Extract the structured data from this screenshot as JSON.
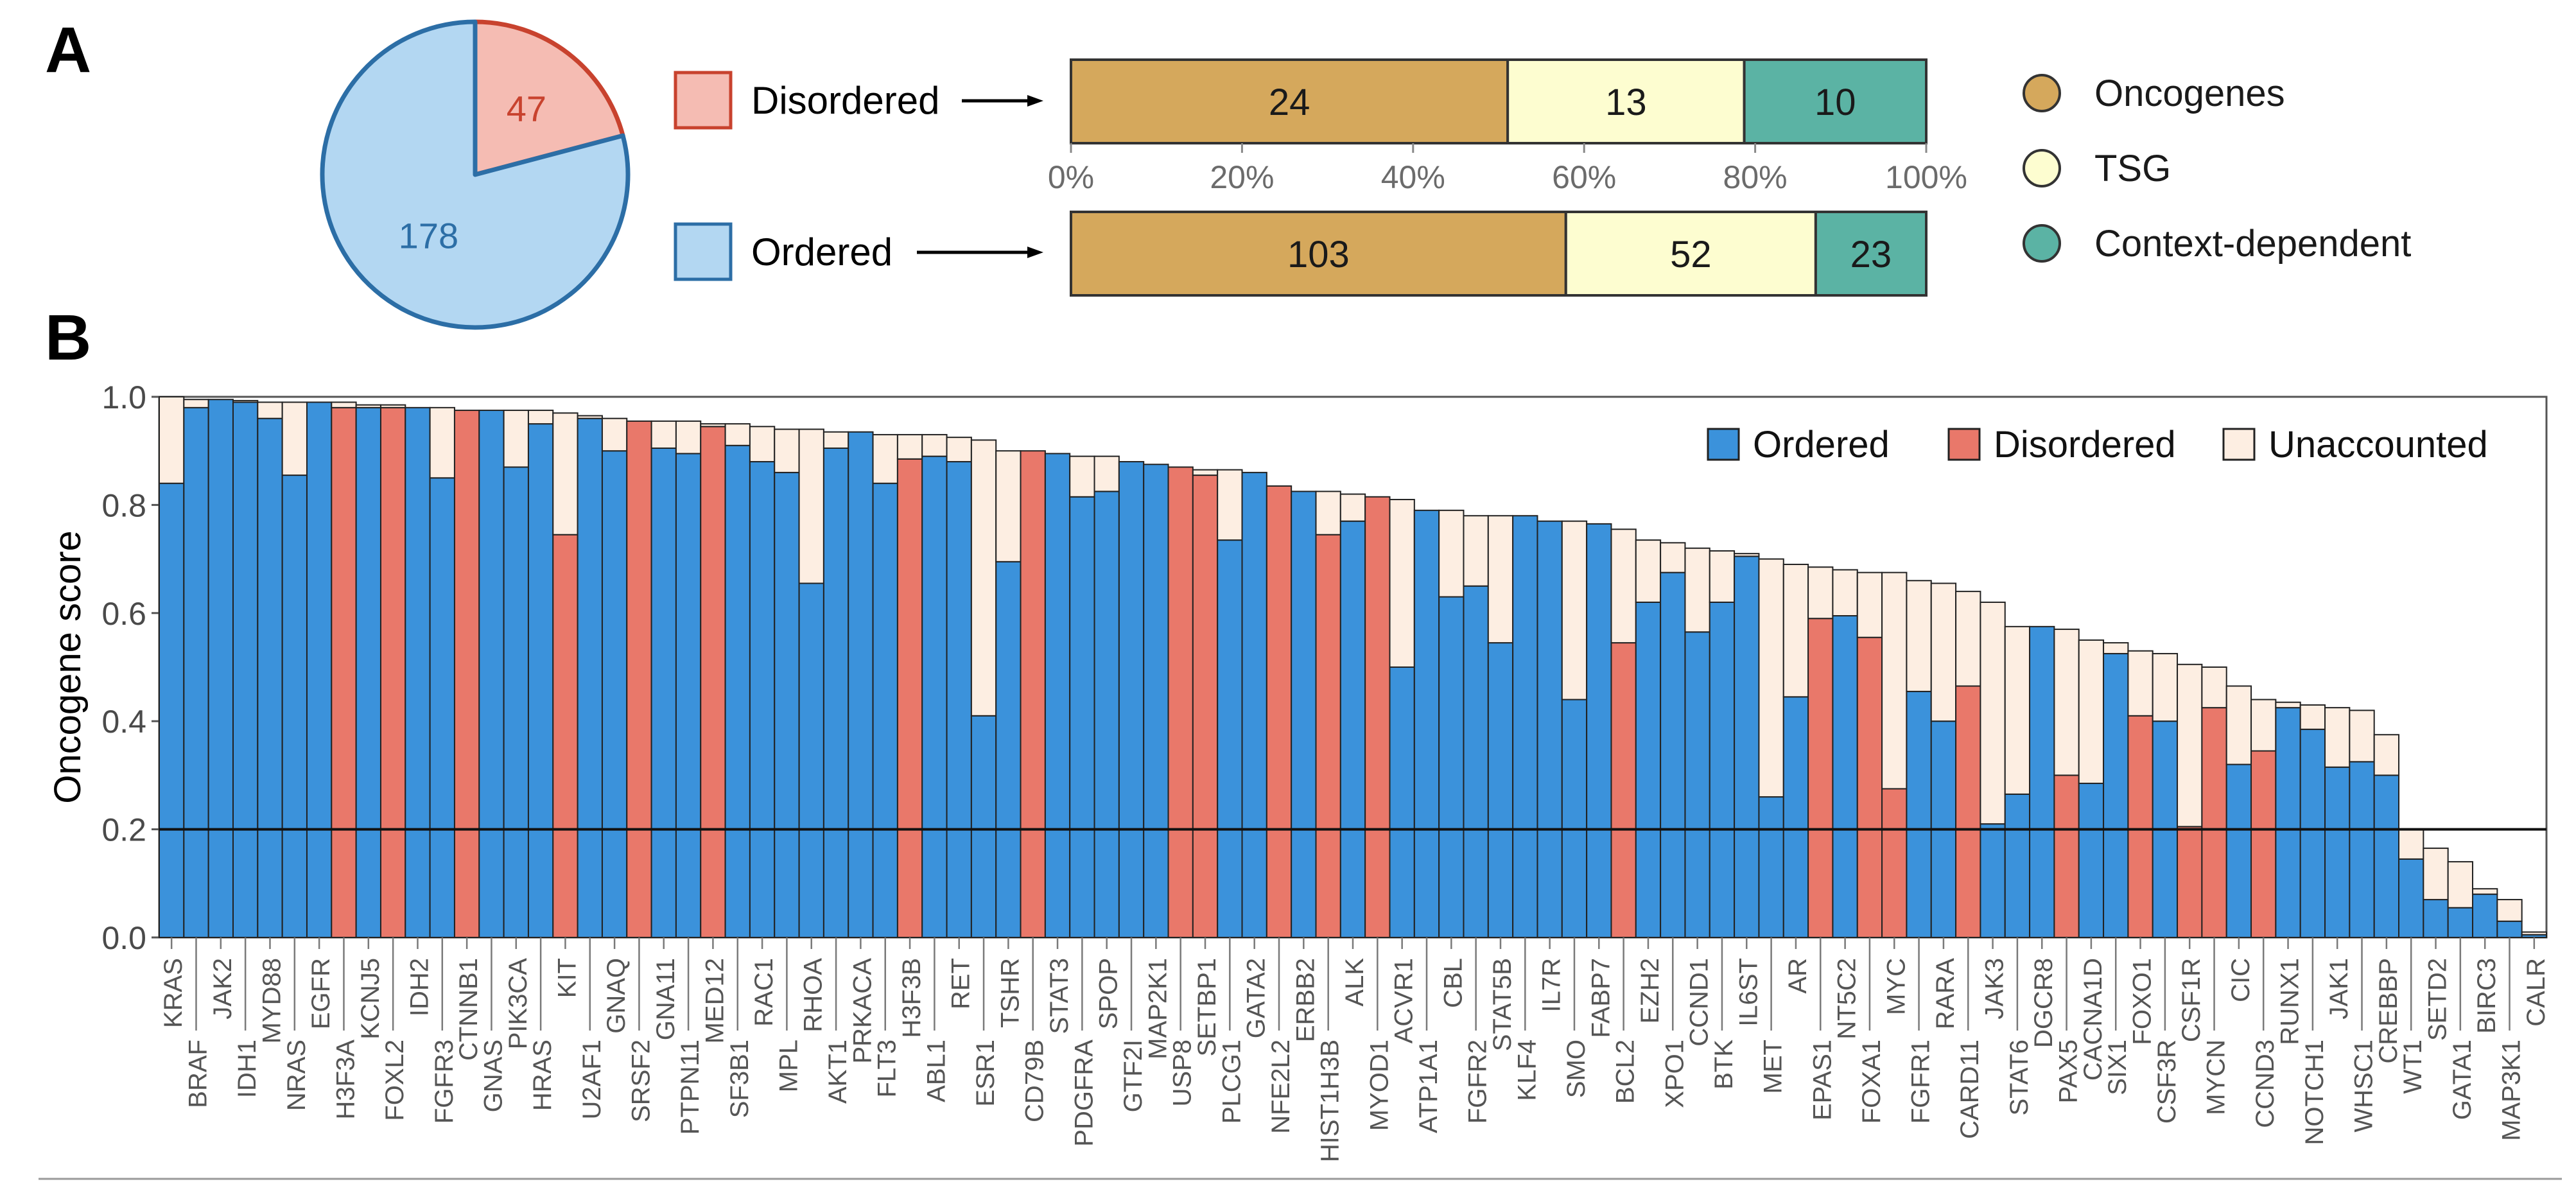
{
  "panel_labels": {
    "a": "A",
    "b": "B"
  },
  "colors": {
    "ordered": "#3b92db",
    "disordered": "#e9786a",
    "unaccounted": "#fdeee2",
    "pie_ordered": "#b3d7f2",
    "pie_ordered_edge": "#2c6ea6",
    "pie_disordered": "#f5bcb3",
    "pie_disordered_edge": "#c8422e",
    "oncogene": "#d5a85c",
    "tsg": "#fdfdd0",
    "context": "#5bb3a4"
  },
  "chart_data": [
    {
      "type": "pie",
      "title": "",
      "slices": [
        {
          "label": "Disordered",
          "value": 47
        },
        {
          "label": "Ordered",
          "value": 178
        }
      ]
    },
    {
      "type": "bar",
      "orientation": "horizontal",
      "stacked": "percent",
      "categories": [
        "Disordered",
        "Ordered"
      ],
      "series": [
        {
          "name": "Oncogenes",
          "values": [
            24,
            103
          ]
        },
        {
          "name": "TSG",
          "values": [
            13,
            52
          ]
        },
        {
          "name": "Context-dependent",
          "values": [
            10,
            23
          ]
        }
      ],
      "axis_ticks": [
        "0%",
        "20%",
        "40%",
        "60%",
        "80%",
        "100%"
      ],
      "legend": [
        "Oncogenes",
        "TSG",
        "Context-dependent"
      ]
    },
    {
      "type": "bar",
      "stacked": true,
      "ylabel": "Oncogene score",
      "ylim": [
        0,
        1.0
      ],
      "yticks": [
        "0.0",
        "0.2",
        "0.4",
        "0.6",
        "0.8",
        "1.0"
      ],
      "threshold": 0.2,
      "legend": [
        "Ordered",
        "Disordered",
        "Unaccounted"
      ],
      "genes": [
        {
          "name": "KRAS",
          "kind": "o",
          "base": 0.84,
          "total": 1.0
        },
        {
          "name": "BRAF",
          "kind": "o",
          "base": 0.98,
          "total": 0.995
        },
        {
          "name": "JAK2",
          "kind": "o",
          "base": 0.995,
          "total": 0.995
        },
        {
          "name": "IDH1",
          "kind": "o",
          "base": 0.99,
          "total": 0.993
        },
        {
          "name": "MYD88",
          "kind": "o",
          "base": 0.96,
          "total": 0.99
        },
        {
          "name": "NRAS",
          "kind": "o",
          "base": 0.855,
          "total": 0.99
        },
        {
          "name": "EGFR",
          "kind": "o",
          "base": 0.99,
          "total": 0.99
        },
        {
          "name": "H3F3A",
          "kind": "d",
          "base": 0.98,
          "total": 0.99
        },
        {
          "name": "KCNJ5",
          "kind": "o",
          "base": 0.98,
          "total": 0.985
        },
        {
          "name": "FOXL2",
          "kind": "d",
          "base": 0.98,
          "total": 0.985
        },
        {
          "name": "IDH2",
          "kind": "o",
          "base": 0.98,
          "total": 0.98
        },
        {
          "name": "FGFR3",
          "kind": "o",
          "base": 0.85,
          "total": 0.98
        },
        {
          "name": "CTNNB1",
          "kind": "d",
          "base": 0.975,
          "total": 0.975
        },
        {
          "name": "GNAS",
          "kind": "o",
          "base": 0.975,
          "total": 0.975
        },
        {
          "name": "PIK3CA",
          "kind": "o",
          "base": 0.87,
          "total": 0.975
        },
        {
          "name": "HRAS",
          "kind": "o",
          "base": 0.95,
          "total": 0.975
        },
        {
          "name": "KIT",
          "kind": "d",
          "base": 0.745,
          "total": 0.97
        },
        {
          "name": "U2AF1",
          "kind": "o",
          "base": 0.96,
          "total": 0.965
        },
        {
          "name": "GNAQ",
          "kind": "o",
          "base": 0.9,
          "total": 0.96
        },
        {
          "name": "SRSF2",
          "kind": "d",
          "base": 0.955,
          "total": 0.955
        },
        {
          "name": "GNA11",
          "kind": "o",
          "base": 0.905,
          "total": 0.955
        },
        {
          "name": "PTPN11",
          "kind": "o",
          "base": 0.895,
          "total": 0.955
        },
        {
          "name": "MED12",
          "kind": "d",
          "base": 0.945,
          "total": 0.95
        },
        {
          "name": "SF3B1",
          "kind": "o",
          "base": 0.91,
          "total": 0.95
        },
        {
          "name": "RAC1",
          "kind": "o",
          "base": 0.88,
          "total": 0.945
        },
        {
          "name": "MPL",
          "kind": "o",
          "base": 0.86,
          "total": 0.94
        },
        {
          "name": "RHOA",
          "kind": "o",
          "base": 0.655,
          "total": 0.94
        },
        {
          "name": "AKT1",
          "kind": "o",
          "base": 0.905,
          "total": 0.935
        },
        {
          "name": "PRKACA",
          "kind": "o",
          "base": 0.935,
          "total": 0.935
        },
        {
          "name": "FLT3",
          "kind": "o",
          "base": 0.84,
          "total": 0.93
        },
        {
          "name": "H3F3B",
          "kind": "d",
          "base": 0.885,
          "total": 0.93
        },
        {
          "name": "ABL1",
          "kind": "o",
          "base": 0.89,
          "total": 0.93
        },
        {
          "name": "RET",
          "kind": "o",
          "base": 0.88,
          "total": 0.925
        },
        {
          "name": "ESR1",
          "kind": "o",
          "base": 0.41,
          "total": 0.92
        },
        {
          "name": "TSHR",
          "kind": "o",
          "base": 0.695,
          "total": 0.9
        },
        {
          "name": "CD79B",
          "kind": "d",
          "base": 0.9,
          "total": 0.9
        },
        {
          "name": "STAT3",
          "kind": "o",
          "base": 0.895,
          "total": 0.895
        },
        {
          "name": "PDGFRA",
          "kind": "o",
          "base": 0.815,
          "total": 0.89
        },
        {
          "name": "SPOP",
          "kind": "o",
          "base": 0.825,
          "total": 0.89
        },
        {
          "name": "GTF2I",
          "kind": "o",
          "base": 0.88,
          "total": 0.88
        },
        {
          "name": "MAP2K1",
          "kind": "o",
          "base": 0.875,
          "total": 0.875
        },
        {
          "name": "USP8",
          "kind": "d",
          "base": 0.87,
          "total": 0.87
        },
        {
          "name": "SETBP1",
          "kind": "d",
          "base": 0.855,
          "total": 0.865
        },
        {
          "name": "PLCG1",
          "kind": "o",
          "base": 0.735,
          "total": 0.865
        },
        {
          "name": "GATA2",
          "kind": "o",
          "base": 0.86,
          "total": 0.86
        },
        {
          "name": "NFE2L2",
          "kind": "d",
          "base": 0.835,
          "total": 0.835
        },
        {
          "name": "ERBB2",
          "kind": "o",
          "base": 0.825,
          "total": 0.825
        },
        {
          "name": "HIST1H3B",
          "kind": "d",
          "base": 0.745,
          "total": 0.825
        },
        {
          "name": "ALK",
          "kind": "o",
          "base": 0.77,
          "total": 0.82
        },
        {
          "name": "MYOD1",
          "kind": "d",
          "base": 0.815,
          "total": 0.815
        },
        {
          "name": "ACVR1",
          "kind": "o",
          "base": 0.5,
          "total": 0.81
        },
        {
          "name": "ATP1A1",
          "kind": "o",
          "base": 0.79,
          "total": 0.79
        },
        {
          "name": "CBL",
          "kind": "o",
          "base": 0.63,
          "total": 0.79
        },
        {
          "name": "FGFR2",
          "kind": "o",
          "base": 0.65,
          "total": 0.78
        },
        {
          "name": "STAT5B",
          "kind": "o",
          "base": 0.545,
          "total": 0.78
        },
        {
          "name": "KLF4",
          "kind": "o",
          "base": 0.78,
          "total": 0.78
        },
        {
          "name": "IL7R",
          "kind": "o",
          "base": 0.77,
          "total": 0.77
        },
        {
          "name": "SMO",
          "kind": "o",
          "base": 0.44,
          "total": 0.77
        },
        {
          "name": "FABP7",
          "kind": "o",
          "base": 0.765,
          "total": 0.765
        },
        {
          "name": "BCL2",
          "kind": "d",
          "base": 0.545,
          "total": 0.755
        },
        {
          "name": "EZH2",
          "kind": "o",
          "base": 0.62,
          "total": 0.735
        },
        {
          "name": "XPO1",
          "kind": "o",
          "base": 0.675,
          "total": 0.73
        },
        {
          "name": "CCND1",
          "kind": "o",
          "base": 0.565,
          "total": 0.72
        },
        {
          "name": "BTK",
          "kind": "o",
          "base": 0.62,
          "total": 0.715
        },
        {
          "name": "IL6ST",
          "kind": "o",
          "base": 0.705,
          "total": 0.71
        },
        {
          "name": "MET",
          "kind": "o",
          "base": 0.26,
          "total": 0.7
        },
        {
          "name": "AR",
          "kind": "o",
          "base": 0.445,
          "total": 0.69
        },
        {
          "name": "EPAS1",
          "kind": "d",
          "base": 0.59,
          "total": 0.685
        },
        {
          "name": "NT5C2",
          "kind": "o",
          "base": 0.595,
          "total": 0.68
        },
        {
          "name": "FOXA1",
          "kind": "d",
          "base": 0.555,
          "total": 0.675
        },
        {
          "name": "MYC",
          "kind": "d",
          "base": 0.275,
          "total": 0.675
        },
        {
          "name": "FGFR1",
          "kind": "o",
          "base": 0.455,
          "total": 0.66
        },
        {
          "name": "RARA",
          "kind": "o",
          "base": 0.4,
          "total": 0.655
        },
        {
          "name": "CARD11",
          "kind": "d",
          "base": 0.465,
          "total": 0.64
        },
        {
          "name": "JAK3",
          "kind": "o",
          "base": 0.21,
          "total": 0.62
        },
        {
          "name": "STAT6",
          "kind": "o",
          "base": 0.265,
          "total": 0.575
        },
        {
          "name": "DGCR8",
          "kind": "o",
          "base": 0.575,
          "total": 0.575
        },
        {
          "name": "PAX5",
          "kind": "d",
          "base": 0.3,
          "total": 0.57
        },
        {
          "name": "CACNA1D",
          "kind": "o",
          "base": 0.285,
          "total": 0.55
        },
        {
          "name": "SIX1",
          "kind": "o",
          "base": 0.525,
          "total": 0.545
        },
        {
          "name": "FOXO1",
          "kind": "d",
          "base": 0.41,
          "total": 0.53
        },
        {
          "name": "CSF3R",
          "kind": "o",
          "base": 0.4,
          "total": 0.525
        },
        {
          "name": "CSF1R",
          "kind": "d",
          "base": 0.205,
          "total": 0.505
        },
        {
          "name": "MYCN",
          "kind": "d",
          "base": 0.425,
          "total": 0.5
        },
        {
          "name": "CIC",
          "kind": "o",
          "base": 0.32,
          "total": 0.465
        },
        {
          "name": "CCND3",
          "kind": "d",
          "base": 0.345,
          "total": 0.44
        },
        {
          "name": "RUNX1",
          "kind": "o",
          "base": 0.425,
          "total": 0.435
        },
        {
          "name": "NOTCH1",
          "kind": "o",
          "base": 0.385,
          "total": 0.43
        },
        {
          "name": "JAK1",
          "kind": "o",
          "base": 0.315,
          "total": 0.425
        },
        {
          "name": "WHSC1",
          "kind": "o",
          "base": 0.325,
          "total": 0.42
        },
        {
          "name": "CREBBP",
          "kind": "o",
          "base": 0.3,
          "total": 0.375
        },
        {
          "name": "WT1",
          "kind": "o",
          "base": 0.145,
          "total": 0.2
        },
        {
          "name": "SETD2",
          "kind": "o",
          "base": 0.07,
          "total": 0.165
        },
        {
          "name": "GATA1",
          "kind": "o",
          "base": 0.055,
          "total": 0.14
        },
        {
          "name": "BIRC3",
          "kind": "o",
          "base": 0.08,
          "total": 0.09
        },
        {
          "name": "MAP3K1",
          "kind": "o",
          "base": 0.03,
          "total": 0.07
        },
        {
          "name": "CALR",
          "kind": "o",
          "base": 0.005,
          "total": 0.01
        }
      ]
    }
  ]
}
